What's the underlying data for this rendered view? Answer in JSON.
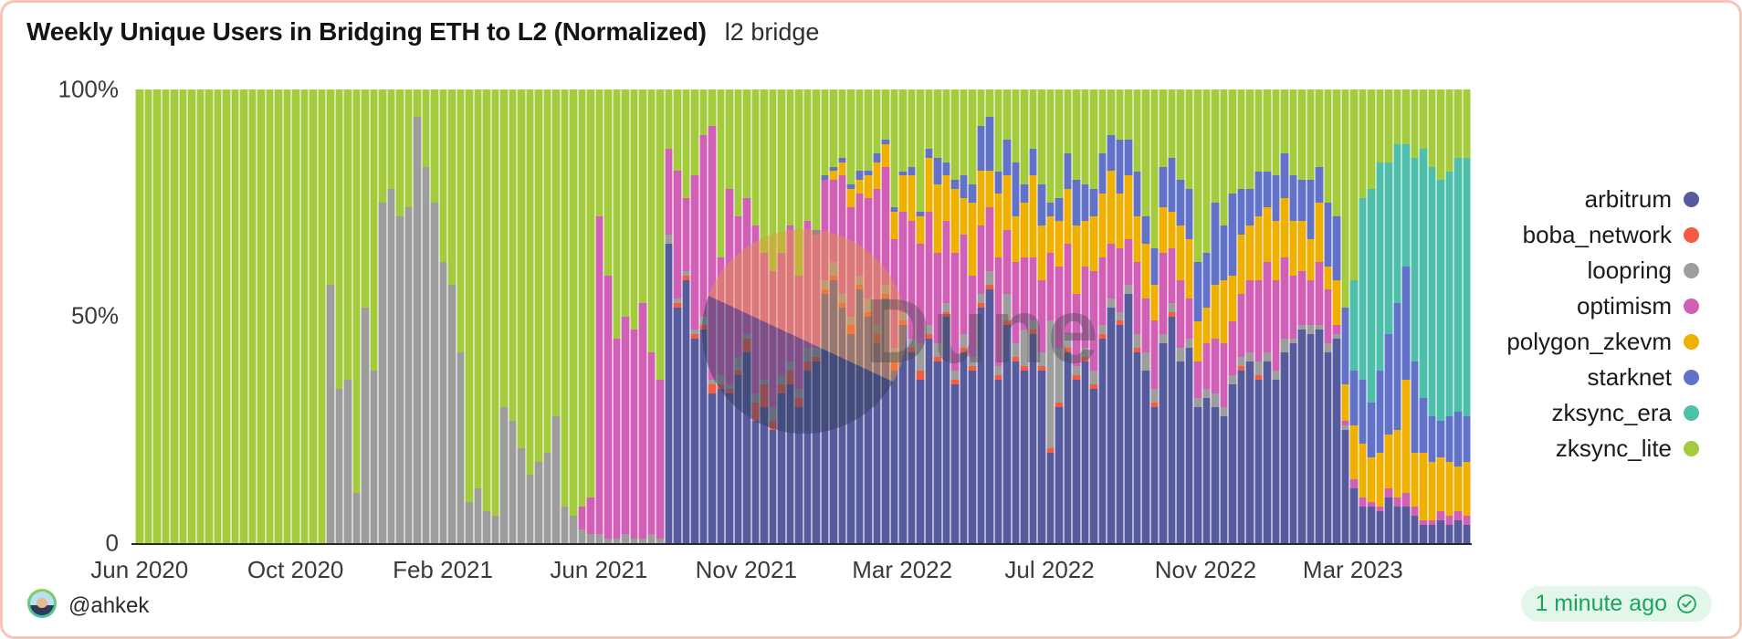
{
  "header": {
    "title": "Weekly Unique Users in Bridging ETH to L2 (Normalized)",
    "subtitle": "l2 bridge"
  },
  "watermark": {
    "text": "Dune"
  },
  "footer": {
    "author": "@ahkek",
    "updated": "1 minute ago",
    "badge_bg": "#e3f6ea",
    "badge_color": "#19a65a"
  },
  "chart_data": {
    "type": "bar",
    "stacked": true,
    "normalized": true,
    "title": "Weekly Unique Users in Bridging ETH to L2 (Normalized)",
    "xlabel": "",
    "ylabel": "",
    "ylim": [
      0,
      100
    ],
    "grid": "horizontal",
    "legend_position": "right",
    "y_axis": {
      "labels": [
        "100%",
        "50%",
        "0"
      ],
      "values": [
        100,
        50,
        0
      ]
    },
    "x_axis": {
      "tick_labels": [
        "Jun 2020",
        "Oct 2020",
        "Feb 2021",
        "Jun 2021",
        "Nov 2021",
        "Mar 2022",
        "Jul 2022",
        "Nov 2022",
        "Mar 2023"
      ],
      "tick_weeks": [
        0,
        18,
        35,
        53,
        70,
        88,
        105,
        123,
        140
      ],
      "start": "Jun 2020",
      "end": "May 2023",
      "interval": "week"
    },
    "series": [
      {
        "name": "arbitrum",
        "color": "#555B9D"
      },
      {
        "name": "boba_network",
        "color": "#F25C44"
      },
      {
        "name": "loopring",
        "color": "#9D9D9D"
      },
      {
        "name": "optimism",
        "color": "#D15FB6"
      },
      {
        "name": "polygon_zkevm",
        "color": "#F0B000"
      },
      {
        "name": "starknet",
        "color": "#6172C8"
      },
      {
        "name": "zksync_era",
        "color": "#4DBFAA"
      },
      {
        "name": "zksync_lite",
        "color": "#A3CB3C"
      }
    ],
    "values_key_order": [
      "arbitrum",
      "boba_network",
      "loopring",
      "optimism",
      "polygon_zkevm",
      "starknet",
      "zksync_era",
      "zksync_lite"
    ],
    "weeks": [
      [
        0,
        0,
        0,
        0,
        0,
        0,
        0,
        100
      ],
      [
        0,
        0,
        0,
        0,
        0,
        0,
        0,
        100
      ],
      [
        0,
        0,
        0,
        0,
        0,
        0,
        0,
        100
      ],
      [
        0,
        0,
        0,
        0,
        0,
        0,
        0,
        100
      ],
      [
        0,
        0,
        0,
        0,
        0,
        0,
        0,
        100
      ],
      [
        0,
        0,
        0,
        0,
        0,
        0,
        0,
        100
      ],
      [
        0,
        0,
        0,
        0,
        0,
        0,
        0,
        100
      ],
      [
        0,
        0,
        0,
        0,
        0,
        0,
        0,
        100
      ],
      [
        0,
        0,
        0,
        0,
        0,
        0,
        0,
        100
      ],
      [
        0,
        0,
        0,
        0,
        0,
        0,
        0,
        100
      ],
      [
        0,
        0,
        0,
        0,
        0,
        0,
        0,
        100
      ],
      [
        0,
        0,
        0,
        0,
        0,
        0,
        0,
        100
      ],
      [
        0,
        0,
        0,
        0,
        0,
        0,
        0,
        100
      ],
      [
        0,
        0,
        0,
        0,
        0,
        0,
        0,
        100
      ],
      [
        0,
        0,
        0,
        0,
        0,
        0,
        0,
        100
      ],
      [
        0,
        0,
        0,
        0,
        0,
        0,
        0,
        100
      ],
      [
        0,
        0,
        0,
        0,
        0,
        0,
        0,
        100
      ],
      [
        0,
        0,
        0,
        0,
        0,
        0,
        0,
        100
      ],
      [
        0,
        0,
        0,
        0,
        0,
        0,
        0,
        100
      ],
      [
        0,
        0,
        0,
        0,
        0,
        0,
        0,
        100
      ],
      [
        0,
        0,
        0,
        0,
        0,
        0,
        0,
        100
      ],
      [
        0,
        0,
        0,
        0,
        0,
        0,
        0,
        100
      ],
      [
        0,
        0,
        57,
        0,
        0,
        0,
        0,
        43
      ],
      [
        0,
        0,
        34,
        0,
        0,
        0,
        0,
        66
      ],
      [
        0,
        0,
        36,
        0,
        0,
        0,
        0,
        64
      ],
      [
        0,
        0,
        11,
        0,
        0,
        0,
        0,
        89
      ],
      [
        0,
        0,
        52,
        0,
        0,
        0,
        0,
        48
      ],
      [
        0,
        0,
        38,
        0,
        0,
        0,
        0,
        62
      ],
      [
        0,
        0,
        75,
        0,
        0,
        0,
        0,
        25
      ],
      [
        0,
        0,
        78,
        0,
        0,
        0,
        0,
        22
      ],
      [
        0,
        0,
        72,
        0,
        0,
        0,
        0,
        28
      ],
      [
        0,
        0,
        74,
        0,
        0,
        0,
        0,
        26
      ],
      [
        0,
        0,
        94,
        0,
        0,
        0,
        0,
        6
      ],
      [
        0,
        0,
        83,
        0,
        0,
        0,
        0,
        17
      ],
      [
        0,
        0,
        75,
        0,
        0,
        0,
        0,
        25
      ],
      [
        0,
        0,
        62,
        0,
        0,
        0,
        0,
        38
      ],
      [
        0,
        0,
        57,
        0,
        0,
        0,
        0,
        43
      ],
      [
        0,
        0,
        42,
        0,
        0,
        0,
        0,
        58
      ],
      [
        0,
        0,
        9,
        0,
        0,
        0,
        0,
        91
      ],
      [
        0,
        0,
        12,
        0,
        0,
        0,
        0,
        88
      ],
      [
        0,
        0,
        7,
        0,
        0,
        0,
        0,
        93
      ],
      [
        0,
        0,
        6,
        0,
        0,
        0,
        0,
        94
      ],
      [
        0,
        0,
        30,
        0,
        0,
        0,
        0,
        70
      ],
      [
        0,
        0,
        27,
        0,
        0,
        0,
        0,
        73
      ],
      [
        0,
        0,
        21,
        0,
        0,
        0,
        0,
        79
      ],
      [
        0,
        0,
        15,
        0,
        0,
        0,
        0,
        85
      ],
      [
        0,
        0,
        18,
        0,
        0,
        0,
        0,
        82
      ],
      [
        0,
        0,
        20,
        0,
        0,
        0,
        0,
        80
      ],
      [
        0,
        0,
        28,
        0,
        0,
        0,
        0,
        72
      ],
      [
        0,
        0,
        8,
        0,
        0,
        0,
        0,
        92
      ],
      [
        0,
        0,
        6,
        0,
        0,
        0,
        0,
        94
      ],
      [
        0,
        0,
        3,
        5,
        0,
        0,
        0,
        92
      ],
      [
        0,
        0,
        2,
        8,
        0,
        0,
        0,
        90
      ],
      [
        0,
        0,
        2,
        70,
        0,
        0,
        0,
        28
      ],
      [
        0,
        0,
        1,
        58,
        0,
        0,
        0,
        41
      ],
      [
        0,
        0,
        1,
        44,
        0,
        0,
        0,
        55
      ],
      [
        0,
        0,
        2,
        48,
        0,
        0,
        0,
        50
      ],
      [
        0,
        0,
        1,
        46,
        0,
        0,
        0,
        53
      ],
      [
        0,
        0,
        1,
        52,
        0,
        0,
        0,
        47
      ],
      [
        0,
        0,
        2,
        40,
        0,
        0,
        0,
        58
      ],
      [
        0,
        0,
        1,
        35,
        0,
        0,
        0,
        64
      ],
      [
        66,
        0,
        2,
        19,
        0,
        0,
        0,
        13
      ],
      [
        52,
        1,
        1,
        28,
        0,
        0,
        0,
        18
      ],
      [
        58,
        1,
        1,
        16,
        0,
        0,
        0,
        24
      ],
      [
        45,
        1,
        1,
        34,
        0,
        0,
        0,
        19
      ],
      [
        47,
        1,
        2,
        40,
        0,
        0,
        0,
        10
      ],
      [
        33,
        2,
        1,
        56,
        0,
        0,
        0,
        8
      ],
      [
        34,
        1,
        2,
        26,
        0,
        0,
        0,
        37
      ],
      [
        33,
        1,
        1,
        43,
        0,
        0,
        0,
        22
      ],
      [
        37,
        1,
        3,
        31,
        0,
        0,
        0,
        28
      ],
      [
        42,
        3,
        1,
        30,
        0,
        0,
        0,
        24
      ],
      [
        27,
        4,
        2,
        37,
        0,
        0,
        0,
        30
      ],
      [
        30,
        5,
        1,
        28,
        0,
        0,
        0,
        36
      ],
      [
        25,
        2,
        3,
        30,
        0,
        0,
        0,
        40
      ],
      [
        33,
        2,
        2,
        27,
        0,
        0,
        0,
        36
      ],
      [
        35,
        3,
        2,
        30,
        0,
        0,
        0,
        30
      ],
      [
        30,
        2,
        2,
        25,
        0,
        0,
        0,
        41
      ],
      [
        38,
        2,
        3,
        28,
        0,
        0,
        0,
        29
      ],
      [
        40,
        1,
        2,
        25,
        0,
        1,
        0,
        31
      ],
      [
        55,
        1,
        2,
        22,
        0,
        1,
        0,
        19
      ],
      [
        58,
        1,
        3,
        18,
        2,
        1,
        0,
        17
      ],
      [
        52,
        1,
        2,
        26,
        3,
        1,
        0,
        15
      ],
      [
        46,
        2,
        2,
        24,
        4,
        1,
        0,
        21
      ],
      [
        56,
        1,
        2,
        18,
        3,
        2,
        0,
        18
      ],
      [
        50,
        1,
        3,
        22,
        5,
        1,
        0,
        18
      ],
      [
        44,
        2,
        2,
        30,
        6,
        2,
        0,
        14
      ],
      [
        54,
        1,
        2,
        26,
        5,
        1,
        0,
        11
      ],
      [
        38,
        2,
        3,
        24,
        6,
        1,
        0,
        26
      ],
      [
        48,
        1,
        2,
        22,
        8,
        1,
        0,
        18
      ],
      [
        42,
        1,
        2,
        26,
        10,
        2,
        0,
        17
      ],
      [
        36,
        2,
        6,
        22,
        6,
        1,
        0,
        27
      ],
      [
        45,
        1,
        2,
        25,
        12,
        2,
        0,
        13
      ],
      [
        40,
        1,
        3,
        20,
        15,
        6,
        0,
        15
      ],
      [
        50,
        1,
        2,
        18,
        10,
        3,
        0,
        16
      ],
      [
        35,
        1,
        2,
        26,
        14,
        2,
        0,
        20
      ],
      [
        42,
        1,
        3,
        22,
        8,
        5,
        0,
        19
      ],
      [
        38,
        1,
        2,
        18,
        16,
        4,
        0,
        21
      ],
      [
        52,
        1,
        2,
        15,
        12,
        10,
        0,
        8
      ],
      [
        56,
        1,
        3,
        14,
        8,
        12,
        0,
        6
      ],
      [
        36,
        1,
        2,
        24,
        14,
        5,
        0,
        18
      ],
      [
        48,
        1,
        6,
        14,
        12,
        8,
        0,
        11
      ],
      [
        40,
        1,
        3,
        18,
        10,
        12,
        0,
        16
      ],
      [
        38,
        1,
        8,
        16,
        12,
        4,
        0,
        21
      ],
      [
        46,
        1,
        2,
        14,
        18,
        6,
        0,
        13
      ],
      [
        38,
        1,
        3,
        16,
        12,
        9,
        0,
        21
      ],
      [
        20,
        1,
        28,
        15,
        8,
        3,
        0,
        25
      ],
      [
        30,
        1,
        12,
        18,
        10,
        5,
        0,
        24
      ],
      [
        42,
        1,
        3,
        20,
        12,
        8,
        0,
        14
      ],
      [
        36,
        1,
        2,
        16,
        15,
        10,
        0,
        20
      ],
      [
        40,
        1,
        2,
        18,
        10,
        8,
        0,
        21
      ],
      [
        34,
        1,
        3,
        22,
        12,
        6,
        0,
        22
      ],
      [
        45,
        1,
        2,
        15,
        14,
        9,
        0,
        14
      ],
      [
        52,
        0,
        2,
        12,
        16,
        8,
        0,
        10
      ],
      [
        48,
        1,
        2,
        14,
        12,
        12,
        0,
        11
      ],
      [
        55,
        0,
        2,
        10,
        14,
        8,
        0,
        11
      ],
      [
        42,
        1,
        3,
        16,
        10,
        10,
        0,
        18
      ],
      [
        38,
        0,
        4,
        12,
        12,
        6,
        0,
        28
      ],
      [
        30,
        1,
        3,
        15,
        8,
        8,
        0,
        35
      ],
      [
        44,
        0,
        2,
        18,
        10,
        9,
        0,
        17
      ],
      [
        50,
        1,
        2,
        12,
        8,
        12,
        0,
        15
      ],
      [
        40,
        0,
        3,
        15,
        12,
        10,
        0,
        20
      ],
      [
        43,
        0,
        2,
        9,
        13,
        11,
        0,
        22
      ],
      [
        30,
        0,
        2,
        8,
        9,
        13,
        0,
        38
      ],
      [
        32,
        0,
        2,
        10,
        8,
        12,
        0,
        36
      ],
      [
        30,
        0,
        3,
        12,
        12,
        18,
        0,
        25
      ],
      [
        28,
        0,
        2,
        14,
        14,
        12,
        0,
        30
      ],
      [
        35,
        0,
        2,
        12,
        10,
        18,
        0,
        23
      ],
      [
        38,
        1,
        2,
        14,
        13,
        10,
        0,
        22
      ],
      [
        40,
        0,
        2,
        16,
        12,
        8,
        0,
        22
      ],
      [
        36,
        1,
        3,
        18,
        14,
        10,
        0,
        18
      ],
      [
        40,
        0,
        2,
        20,
        12,
        8,
        0,
        18
      ],
      [
        36,
        0,
        2,
        20,
        13,
        10,
        0,
        19
      ],
      [
        42,
        0,
        3,
        18,
        13,
        10,
        0,
        14
      ],
      [
        44,
        0,
        1,
        14,
        12,
        10,
        0,
        19
      ],
      [
        47,
        0,
        1,
        12,
        11,
        9,
        0,
        20
      ],
      [
        46,
        0,
        2,
        10,
        9,
        13,
        0,
        20
      ],
      [
        47,
        0,
        1,
        14,
        13,
        8,
        0,
        17
      ],
      [
        42,
        0,
        2,
        12,
        5,
        14,
        0,
        25
      ],
      [
        45,
        0,
        1,
        2,
        10,
        14,
        0,
        28
      ],
      [
        25,
        0,
        1,
        1,
        8,
        17,
        0,
        48
      ],
      [
        12,
        0,
        0,
        2,
        12,
        12,
        20,
        42
      ],
      [
        8,
        0,
        0,
        2,
        12,
        14,
        40,
        24
      ],
      [
        8,
        0,
        0,
        1,
        10,
        12,
        47,
        22
      ],
      [
        7,
        0,
        0,
        1,
        12,
        18,
        46,
        16
      ],
      [
        10,
        0,
        0,
        2,
        12,
        22,
        38,
        16
      ],
      [
        8,
        0,
        0,
        2,
        15,
        28,
        35,
        12
      ],
      [
        8,
        0,
        0,
        3,
        25,
        25,
        27,
        12
      ],
      [
        6,
        0,
        0,
        2,
        12,
        20,
        45,
        15
      ],
      [
        4,
        0,
        0,
        1,
        15,
        12,
        55,
        13
      ],
      [
        4,
        0,
        0,
        1,
        13,
        10,
        55,
        17
      ],
      [
        5,
        0,
        0,
        2,
        12,
        8,
        53,
        20
      ],
      [
        4,
        0,
        0,
        2,
        12,
        10,
        54,
        18
      ],
      [
        5,
        0,
        0,
        2,
        10,
        12,
        56,
        15
      ],
      [
        4,
        0,
        0,
        2,
        12,
        10,
        57,
        15
      ]
    ]
  }
}
